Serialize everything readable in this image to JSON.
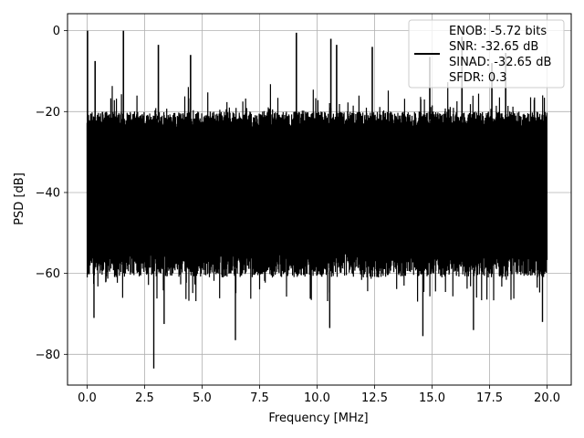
{
  "chart_data": {
    "type": "line",
    "title": "",
    "xlabel": "Frequency [MHz]",
    "ylabel": "PSD [dB]",
    "xlim": [
      -0.85,
      21.05
    ],
    "ylim": [
      -87.6,
      4.2
    ],
    "xticks": [
      0.0,
      2.5,
      5.0,
      7.5,
      10.0,
      12.5,
      15.0,
      17.5,
      20.0
    ],
    "xtick_labels": [
      "0.0",
      "2.5",
      "5.0",
      "7.5",
      "10.0",
      "12.5",
      "15.0",
      "17.5",
      "20.0"
    ],
    "yticks": [
      0,
      -20,
      -40,
      -60,
      -80
    ],
    "ytick_labels": [
      "0",
      "−20",
      "−40",
      "−60",
      "−80"
    ],
    "grid": true,
    "legend_position": "top-right",
    "colors": {
      "series": "#000000",
      "grid": "#b0b0b0",
      "axes": "#000000",
      "legend_border": "#cccccc"
    },
    "series": [
      {
        "legend_lines": [
          "ENOB: -5.72 bits",
          "SNR: -32.65 dB",
          "SINAD: -32.65 dB",
          "SFDR: 0.3"
        ],
        "noise_floor": {
          "typical_top": -22,
          "typical_bottom": -59,
          "x_range": [
            0.0,
            20.0
          ]
        },
        "spikes_up": [
          {
            "x": 0.02,
            "y": 0.0
          },
          {
            "x": 1.58,
            "y": 0.0
          },
          {
            "x": 0.35,
            "y": -7.5
          },
          {
            "x": 3.1,
            "y": -3.5
          },
          {
            "x": 4.5,
            "y": -6.0
          },
          {
            "x": 9.1,
            "y": -0.5
          },
          {
            "x": 10.6,
            "y": -2.0
          },
          {
            "x": 10.85,
            "y": -3.5
          },
          {
            "x": 12.4,
            "y": -4.0
          },
          {
            "x": 14.9,
            "y": -6.5
          },
          {
            "x": 16.3,
            "y": -1.5
          },
          {
            "x": 17.6,
            "y": -8.0
          },
          {
            "x": 18.2,
            "y": -5.5
          }
        ],
        "spikes_down": [
          {
            "x": 0.3,
            "y": -71.0
          },
          {
            "x": 2.9,
            "y": -83.5
          },
          {
            "x": 3.35,
            "y": -72.5
          },
          {
            "x": 6.45,
            "y": -76.5
          },
          {
            "x": 10.55,
            "y": -73.5
          },
          {
            "x": 14.6,
            "y": -75.5
          },
          {
            "x": 16.8,
            "y": -74.0
          },
          {
            "x": 19.8,
            "y": -72.0
          }
        ]
      }
    ]
  }
}
